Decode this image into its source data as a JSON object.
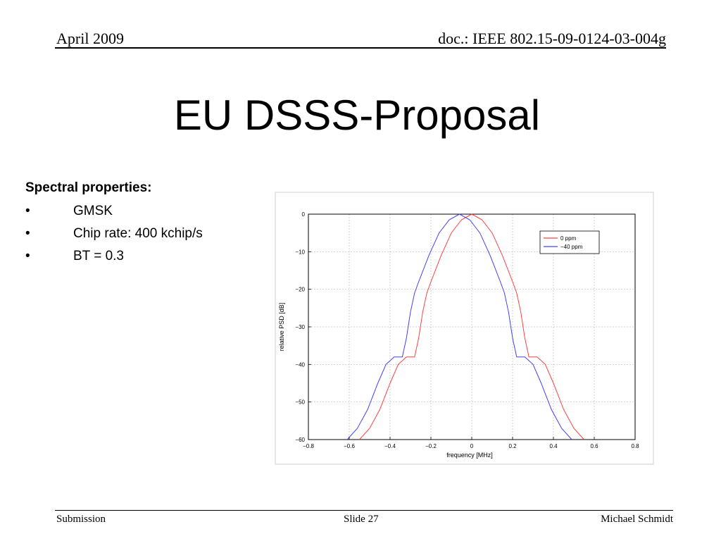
{
  "header": {
    "date": "April 2009",
    "doc": "doc.: IEEE 802.15-09-0124-03-004g"
  },
  "title": "EU DSSS-Proposal",
  "content": {
    "heading": "Spectral properties:",
    "bullet_symbol": "•",
    "bullets": [
      "GMSK",
      "Chip rate: 400 kchip/s",
      "BT = 0.3"
    ]
  },
  "footer": {
    "left": "Submission",
    "center": "Slide 27",
    "right": "Michael Schmidt"
  },
  "chart_data": {
    "type": "line",
    "title": "",
    "xlabel": "frequency [MHz]",
    "ylabel": "relative PSD [dB]",
    "xlim": [
      -0.8,
      0.8
    ],
    "ylim": [
      -60,
      0
    ],
    "xticks": [
      -0.8,
      -0.6,
      -0.4,
      -0.2,
      0,
      0.2,
      0.4,
      0.6,
      0.8
    ],
    "yticks": [
      -60,
      -50,
      -40,
      -30,
      -20,
      -10,
      0
    ],
    "xtick_labels": [
      "−0.8",
      "−0.6",
      "−0.4",
      "−0.2",
      "0",
      "0.2",
      "0.4",
      "0.6",
      "0.8"
    ],
    "ytick_labels": [
      "−60",
      "−50",
      "−40",
      "−30",
      "−20",
      "−10",
      "0"
    ],
    "grid": true,
    "legend_position": "top-right",
    "series": [
      {
        "name": "0 ppm",
        "color": "#ff4040",
        "x": [
          -0.55,
          -0.5,
          -0.45,
          -0.4,
          -0.36,
          -0.32,
          -0.3,
          -0.28,
          -0.26,
          -0.24,
          -0.22,
          -0.2,
          -0.15,
          -0.1,
          -0.05,
          0,
          0.05,
          0.1,
          0.15,
          0.2,
          0.22,
          0.24,
          0.26,
          0.28,
          0.3,
          0.32,
          0.36,
          0.4,
          0.45,
          0.5,
          0.55
        ],
        "y": [
          -60,
          -57,
          -52,
          -45,
          -40,
          -38,
          -38,
          -38,
          -33,
          -26,
          -21,
          -18,
          -11,
          -5,
          -1.5,
          0,
          -1.5,
          -5,
          -11,
          -18,
          -21,
          -26,
          -33,
          -38,
          -38,
          -38,
          -40,
          -45,
          -52,
          -57,
          -60
        ]
      },
      {
        "name": "−40 ppm",
        "color": "#4040ff",
        "x": [
          -0.61,
          -0.56,
          -0.51,
          -0.46,
          -0.42,
          -0.38,
          -0.36,
          -0.34,
          -0.32,
          -0.3,
          -0.28,
          -0.26,
          -0.21,
          -0.16,
          -0.11,
          -0.06,
          -0.01,
          0.04,
          0.09,
          0.14,
          0.16,
          0.18,
          0.2,
          0.22,
          0.24,
          0.26,
          0.3,
          0.34,
          0.39,
          0.44,
          0.49
        ],
        "y": [
          -60,
          -57,
          -52,
          -45,
          -40,
          -38,
          -38,
          -38,
          -33,
          -26,
          -21,
          -18,
          -11,
          -5,
          -1.5,
          0,
          -1.5,
          -5,
          -11,
          -18,
          -21,
          -26,
          -33,
          -38,
          -38,
          -38,
          -40,
          -45,
          -52,
          -57,
          -60
        ]
      }
    ]
  }
}
